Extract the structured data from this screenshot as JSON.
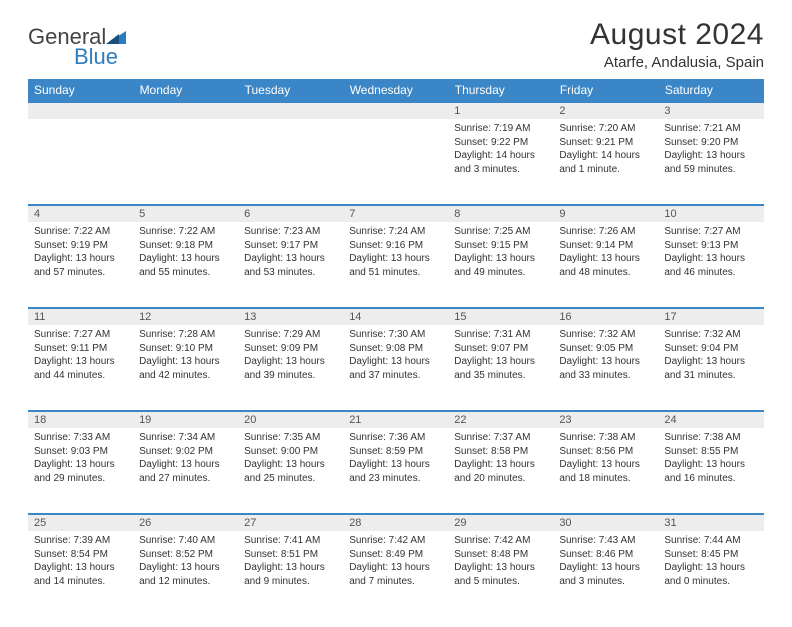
{
  "logo": {
    "g": "General",
    "b": "Blue"
  },
  "title": "August 2024",
  "location": "Atarfe, Andalusia, Spain",
  "colors": {
    "header_bg": "#3b86c6",
    "header_fg": "#ffffff",
    "daynum_bg": "#ededed",
    "rule": "#3b86c6",
    "text": "#333333"
  },
  "typography": {
    "title_fontsize": 30,
    "location_fontsize": 15,
    "day_fontsize": 12,
    "cell_fontsize": 10
  },
  "days": [
    "Sunday",
    "Monday",
    "Tuesday",
    "Wednesday",
    "Thursday",
    "Friday",
    "Saturday"
  ],
  "weeks": [
    [
      null,
      null,
      null,
      null,
      {
        "n": "1",
        "sr": "Sunrise: 7:19 AM",
        "ss": "Sunset: 9:22 PM",
        "dl1": "Daylight: 14 hours",
        "dl2": "and 3 minutes."
      },
      {
        "n": "2",
        "sr": "Sunrise: 7:20 AM",
        "ss": "Sunset: 9:21 PM",
        "dl1": "Daylight: 14 hours",
        "dl2": "and 1 minute."
      },
      {
        "n": "3",
        "sr": "Sunrise: 7:21 AM",
        "ss": "Sunset: 9:20 PM",
        "dl1": "Daylight: 13 hours",
        "dl2": "and 59 minutes."
      }
    ],
    [
      {
        "n": "4",
        "sr": "Sunrise: 7:22 AM",
        "ss": "Sunset: 9:19 PM",
        "dl1": "Daylight: 13 hours",
        "dl2": "and 57 minutes."
      },
      {
        "n": "5",
        "sr": "Sunrise: 7:22 AM",
        "ss": "Sunset: 9:18 PM",
        "dl1": "Daylight: 13 hours",
        "dl2": "and 55 minutes."
      },
      {
        "n": "6",
        "sr": "Sunrise: 7:23 AM",
        "ss": "Sunset: 9:17 PM",
        "dl1": "Daylight: 13 hours",
        "dl2": "and 53 minutes."
      },
      {
        "n": "7",
        "sr": "Sunrise: 7:24 AM",
        "ss": "Sunset: 9:16 PM",
        "dl1": "Daylight: 13 hours",
        "dl2": "and 51 minutes."
      },
      {
        "n": "8",
        "sr": "Sunrise: 7:25 AM",
        "ss": "Sunset: 9:15 PM",
        "dl1": "Daylight: 13 hours",
        "dl2": "and 49 minutes."
      },
      {
        "n": "9",
        "sr": "Sunrise: 7:26 AM",
        "ss": "Sunset: 9:14 PM",
        "dl1": "Daylight: 13 hours",
        "dl2": "and 48 minutes."
      },
      {
        "n": "10",
        "sr": "Sunrise: 7:27 AM",
        "ss": "Sunset: 9:13 PM",
        "dl1": "Daylight: 13 hours",
        "dl2": "and 46 minutes."
      }
    ],
    [
      {
        "n": "11",
        "sr": "Sunrise: 7:27 AM",
        "ss": "Sunset: 9:11 PM",
        "dl1": "Daylight: 13 hours",
        "dl2": "and 44 minutes."
      },
      {
        "n": "12",
        "sr": "Sunrise: 7:28 AM",
        "ss": "Sunset: 9:10 PM",
        "dl1": "Daylight: 13 hours",
        "dl2": "and 42 minutes."
      },
      {
        "n": "13",
        "sr": "Sunrise: 7:29 AM",
        "ss": "Sunset: 9:09 PM",
        "dl1": "Daylight: 13 hours",
        "dl2": "and 39 minutes."
      },
      {
        "n": "14",
        "sr": "Sunrise: 7:30 AM",
        "ss": "Sunset: 9:08 PM",
        "dl1": "Daylight: 13 hours",
        "dl2": "and 37 minutes."
      },
      {
        "n": "15",
        "sr": "Sunrise: 7:31 AM",
        "ss": "Sunset: 9:07 PM",
        "dl1": "Daylight: 13 hours",
        "dl2": "and 35 minutes."
      },
      {
        "n": "16",
        "sr": "Sunrise: 7:32 AM",
        "ss": "Sunset: 9:05 PM",
        "dl1": "Daylight: 13 hours",
        "dl2": "and 33 minutes."
      },
      {
        "n": "17",
        "sr": "Sunrise: 7:32 AM",
        "ss": "Sunset: 9:04 PM",
        "dl1": "Daylight: 13 hours",
        "dl2": "and 31 minutes."
      }
    ],
    [
      {
        "n": "18",
        "sr": "Sunrise: 7:33 AM",
        "ss": "Sunset: 9:03 PM",
        "dl1": "Daylight: 13 hours",
        "dl2": "and 29 minutes."
      },
      {
        "n": "19",
        "sr": "Sunrise: 7:34 AM",
        "ss": "Sunset: 9:02 PM",
        "dl1": "Daylight: 13 hours",
        "dl2": "and 27 minutes."
      },
      {
        "n": "20",
        "sr": "Sunrise: 7:35 AM",
        "ss": "Sunset: 9:00 PM",
        "dl1": "Daylight: 13 hours",
        "dl2": "and 25 minutes."
      },
      {
        "n": "21",
        "sr": "Sunrise: 7:36 AM",
        "ss": "Sunset: 8:59 PM",
        "dl1": "Daylight: 13 hours",
        "dl2": "and 23 minutes."
      },
      {
        "n": "22",
        "sr": "Sunrise: 7:37 AM",
        "ss": "Sunset: 8:58 PM",
        "dl1": "Daylight: 13 hours",
        "dl2": "and 20 minutes."
      },
      {
        "n": "23",
        "sr": "Sunrise: 7:38 AM",
        "ss": "Sunset: 8:56 PM",
        "dl1": "Daylight: 13 hours",
        "dl2": "and 18 minutes."
      },
      {
        "n": "24",
        "sr": "Sunrise: 7:38 AM",
        "ss": "Sunset: 8:55 PM",
        "dl1": "Daylight: 13 hours",
        "dl2": "and 16 minutes."
      }
    ],
    [
      {
        "n": "25",
        "sr": "Sunrise: 7:39 AM",
        "ss": "Sunset: 8:54 PM",
        "dl1": "Daylight: 13 hours",
        "dl2": "and 14 minutes."
      },
      {
        "n": "26",
        "sr": "Sunrise: 7:40 AM",
        "ss": "Sunset: 8:52 PM",
        "dl1": "Daylight: 13 hours",
        "dl2": "and 12 minutes."
      },
      {
        "n": "27",
        "sr": "Sunrise: 7:41 AM",
        "ss": "Sunset: 8:51 PM",
        "dl1": "Daylight: 13 hours",
        "dl2": "and 9 minutes."
      },
      {
        "n": "28",
        "sr": "Sunrise: 7:42 AM",
        "ss": "Sunset: 8:49 PM",
        "dl1": "Daylight: 13 hours",
        "dl2": "and 7 minutes."
      },
      {
        "n": "29",
        "sr": "Sunrise: 7:42 AM",
        "ss": "Sunset: 8:48 PM",
        "dl1": "Daylight: 13 hours",
        "dl2": "and 5 minutes."
      },
      {
        "n": "30",
        "sr": "Sunrise: 7:43 AM",
        "ss": "Sunset: 8:46 PM",
        "dl1": "Daylight: 13 hours",
        "dl2": "and 3 minutes."
      },
      {
        "n": "31",
        "sr": "Sunrise: 7:44 AM",
        "ss": "Sunset: 8:45 PM",
        "dl1": "Daylight: 13 hours",
        "dl2": "and 0 minutes."
      }
    ]
  ]
}
